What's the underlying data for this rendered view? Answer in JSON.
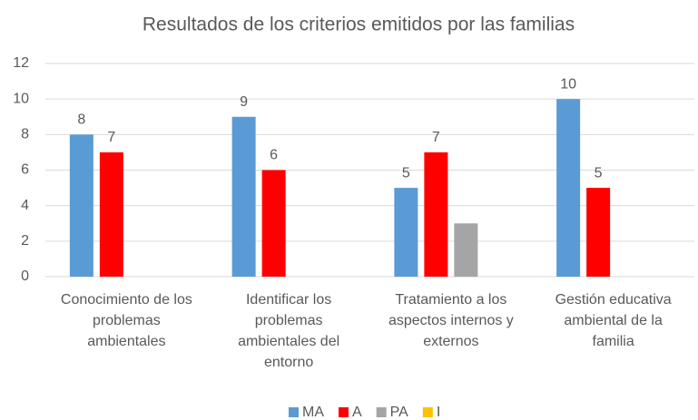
{
  "chart_data": {
    "type": "bar",
    "title": "Resultados de los criterios emitidos por las familias",
    "categories": [
      [
        "Conocimiento de los",
        "problemas",
        "ambientales"
      ],
      [
        "Identificar los",
        "problemas",
        "ambientales del",
        "entorno"
      ],
      [
        "Tratamiento a los",
        "aspectos internos y",
        "externos"
      ],
      [
        "Gestión educativa",
        "ambiental de la",
        "familia"
      ]
    ],
    "series": [
      {
        "name": "MA",
        "color": "#5b9bd5",
        "values": [
          8,
          9,
          5,
          10
        ],
        "data_labels": true
      },
      {
        "name": "A",
        "color": "#ff0000",
        "values": [
          7,
          6,
          7,
          5
        ],
        "data_labels": true
      },
      {
        "name": "PA",
        "color": "#a5a5a5",
        "values": [
          0,
          0,
          3,
          0
        ],
        "data_labels": false
      },
      {
        "name": "I",
        "color": "#ffc000",
        "values": [
          0,
          0,
          0,
          0
        ],
        "data_labels": false
      }
    ],
    "ylim": [
      0,
      12
    ],
    "yticks": [
      0,
      2,
      4,
      6,
      8,
      10,
      12
    ],
    "grid": true,
    "legend": "bottom"
  }
}
